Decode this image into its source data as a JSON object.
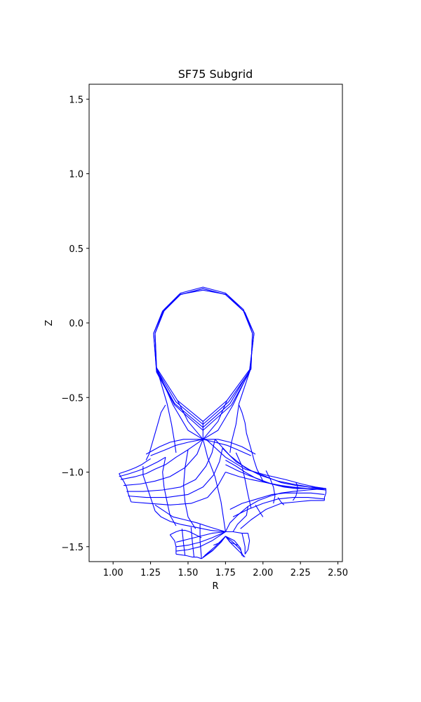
{
  "chart_data": {
    "type": "line",
    "title": "SF75 Subgrid",
    "xlabel": "R",
    "ylabel": "Z",
    "xlim": [
      0.84,
      2.53
    ],
    "ylim": [
      -1.6,
      1.6
    ],
    "xticks": [
      1.0,
      1.25,
      1.5,
      1.75,
      2.0,
      2.25,
      2.5
    ],
    "xtick_labels": [
      "1.00",
      "1.25",
      "1.50",
      "1.75",
      "2.00",
      "2.25",
      "2.50"
    ],
    "yticks": [
      1.5,
      1.0,
      0.5,
      0.0,
      -0.5,
      -1.0,
      -1.5
    ],
    "ytick_labels": [
      "1.5",
      "1.0",
      "0.5",
      "0.0",
      "−0.5",
      "−1.0",
      "−1.5"
    ],
    "grid": false,
    "line_color": "#0000ff",
    "series": [
      {
        "x": [
          1.28,
          1.34,
          1.45,
          1.6,
          1.75,
          1.87,
          1.93,
          1.92,
          1.76,
          1.6,
          1.43,
          1.29,
          1.28
        ],
        "y": [
          -0.07,
          0.09,
          0.2,
          0.24,
          0.2,
          0.09,
          -0.07,
          -0.3,
          -0.52,
          -0.66,
          -0.52,
          -0.3,
          -0.07
        ]
      },
      {
        "x": [
          1.28,
          1.34,
          1.45,
          1.6,
          1.75,
          1.87,
          1.93,
          1.92,
          1.77,
          1.6,
          1.42,
          1.29,
          1.28
        ],
        "y": [
          -0.07,
          0.08,
          0.19,
          0.23,
          0.19,
          0.08,
          -0.07,
          -0.31,
          -0.53,
          -0.68,
          -0.53,
          -0.31,
          -0.07
        ]
      },
      {
        "x": [
          1.27,
          1.33,
          1.45,
          1.6,
          1.75,
          1.87,
          1.94,
          1.91,
          1.78,
          1.6,
          1.41,
          1.29,
          1.27
        ],
        "y": [
          -0.07,
          0.08,
          0.19,
          0.23,
          0.19,
          0.08,
          -0.07,
          -0.32,
          -0.54,
          -0.7,
          -0.54,
          -0.32,
          -0.07
        ]
      },
      {
        "x": [
          1.27,
          1.33,
          1.44,
          1.6,
          1.76,
          1.88,
          1.94,
          1.91,
          1.79,
          1.6,
          1.41,
          1.29,
          1.27
        ],
        "y": [
          -0.07,
          0.07,
          0.19,
          0.22,
          0.19,
          0.07,
          -0.07,
          -0.33,
          -0.55,
          -0.72,
          -0.55,
          -0.33,
          -0.07
        ]
      },
      {
        "x": [
          1.29,
          1.36,
          1.39,
          1.41,
          1.42
        ],
        "y": [
          -0.3,
          -0.54,
          -0.68,
          -0.8,
          -0.87
        ]
      },
      {
        "x": [
          1.29,
          1.4,
          1.5,
          1.6
        ],
        "y": [
          -0.3,
          -0.55,
          -0.72,
          -0.78
        ]
      },
      {
        "x": [
          1.43,
          1.5,
          1.6
        ],
        "y": [
          -0.52,
          -0.66,
          -0.78
        ]
      },
      {
        "x": [
          1.92,
          1.84,
          1.82,
          1.79,
          1.78
        ],
        "y": [
          -0.3,
          -0.54,
          -0.68,
          -0.8,
          -0.87
        ]
      },
      {
        "x": [
          1.92,
          1.8,
          1.7,
          1.6
        ],
        "y": [
          -0.3,
          -0.55,
          -0.72,
          -0.78
        ]
      },
      {
        "x": [
          1.76,
          1.7,
          1.6
        ],
        "y": [
          -0.52,
          -0.66,
          -0.78
        ]
      },
      {
        "x": [
          1.6,
          1.6
        ],
        "y": [
          -0.66,
          -0.78
        ]
      },
      {
        "x": [
          1.35,
          1.32,
          1.3,
          1.28,
          1.26,
          1.24,
          1.22
        ],
        "y": [
          -0.55,
          -0.6,
          -0.67,
          -0.74,
          -0.81,
          -0.88,
          -0.92
        ]
      },
      {
        "x": [
          1.84,
          1.86,
          1.88,
          1.89,
          1.91,
          1.93,
          1.94
        ],
        "y": [
          -0.55,
          -0.6,
          -0.67,
          -0.74,
          -0.81,
          -0.88,
          -0.92
        ]
      },
      {
        "x": [
          1.22,
          1.31,
          1.38,
          1.47,
          1.6
        ],
        "y": [
          -0.88,
          -0.83,
          -0.8,
          -0.78,
          -0.78
        ]
      },
      {
        "x": [
          1.25,
          1.35,
          1.42,
          1.5,
          1.6
        ],
        "y": [
          -0.89,
          -0.85,
          -0.82,
          -0.8,
          -0.78
        ]
      },
      {
        "x": [
          1.95,
          1.86,
          1.78,
          1.7,
          1.6
        ],
        "y": [
          -0.88,
          -0.83,
          -0.8,
          -0.78,
          -0.78
        ]
      },
      {
        "x": [
          1.92,
          1.83,
          1.76,
          1.68,
          1.6
        ],
        "y": [
          -0.89,
          -0.85,
          -0.82,
          -0.8,
          -0.78
        ]
      },
      {
        "x": [
          1.04,
          1.1,
          1.15,
          1.19,
          1.22,
          1.25
        ],
        "y": [
          -1.01,
          -0.99,
          -0.97,
          -0.95,
          -0.93,
          -0.91
        ]
      },
      {
        "x": [
          1.04,
          1.11,
          1.17,
          1.22,
          1.26,
          1.3,
          1.35
        ],
        "y": [
          -1.03,
          -1.01,
          -0.99,
          -0.97,
          -0.95,
          -0.93,
          -0.9
        ]
      },
      {
        "x": [
          1.05,
          1.15,
          1.22,
          1.28,
          1.35,
          1.42,
          1.5,
          1.6
        ],
        "y": [
          -1.05,
          -1.03,
          -1.01,
          -0.98,
          -0.95,
          -0.9,
          -0.85,
          -0.78
        ]
      },
      {
        "x": [
          1.07,
          1.18,
          1.28,
          1.38,
          1.48,
          1.56,
          1.6
        ],
        "y": [
          -1.09,
          -1.08,
          -1.06,
          -1.03,
          -0.97,
          -0.88,
          -0.78
        ]
      },
      {
        "x": [
          1.09,
          1.2,
          1.33,
          1.45,
          1.55,
          1.62,
          1.66,
          1.68
        ],
        "y": [
          -1.13,
          -1.13,
          -1.12,
          -1.1,
          -1.05,
          -0.96,
          -0.87,
          -0.78
        ]
      },
      {
        "x": [
          1.1,
          1.22,
          1.36,
          1.5,
          1.6,
          1.67,
          1.71,
          1.73
        ],
        "y": [
          -1.16,
          -1.17,
          -1.17,
          -1.15,
          -1.1,
          -1.02,
          -0.93,
          -0.84
        ]
      },
      {
        "x": [
          1.12,
          1.24,
          1.38,
          1.52,
          1.63,
          1.7,
          1.75
        ],
        "y": [
          -1.2,
          -1.21,
          -1.22,
          -1.21,
          -1.17,
          -1.09,
          -1.0
        ]
      },
      {
        "x": [
          1.04,
          1.05,
          1.07,
          1.09,
          1.1,
          1.12
        ],
        "y": [
          -1.01,
          -1.03,
          -1.06,
          -1.1,
          -1.14,
          -1.2
        ]
      },
      {
        "x": [
          1.2,
          1.2,
          1.22,
          1.24,
          1.26,
          1.28
        ],
        "y": [
          -0.96,
          -1.02,
          -1.08,
          -1.14,
          -1.2,
          -1.26
        ]
      },
      {
        "x": [
          1.35,
          1.33,
          1.34,
          1.36,
          1.38,
          1.42
        ],
        "y": [
          -0.9,
          -1.0,
          -1.1,
          -1.2,
          -1.29,
          -1.36
        ]
      },
      {
        "x": [
          1.5,
          1.48,
          1.47,
          1.48,
          1.5,
          1.55
        ],
        "y": [
          -0.85,
          -0.97,
          -1.09,
          -1.2,
          -1.3,
          -1.38
        ]
      },
      {
        "x": [
          1.6,
          1.63,
          1.68,
          1.72,
          1.75
        ],
        "y": [
          -0.78,
          -0.9,
          -1.03,
          -1.2,
          -1.4
        ]
      },
      {
        "x": [
          1.28,
          1.32,
          1.38,
          1.45,
          1.55,
          1.65,
          1.75
        ],
        "y": [
          -1.26,
          -1.3,
          -1.33,
          -1.35,
          -1.37,
          -1.39,
          -1.4
        ]
      },
      {
        "x": [
          1.28,
          1.34,
          1.4,
          1.48,
          1.56,
          1.65,
          1.75
        ],
        "y": [
          -1.22,
          -1.26,
          -1.3,
          -1.32,
          -1.34,
          -1.37,
          -1.4
        ]
      },
      {
        "x": [
          1.38,
          1.41,
          1.42,
          1.42,
          1.42
        ],
        "y": [
          -1.42,
          -1.46,
          -1.5,
          -1.53,
          -1.55
        ]
      },
      {
        "x": [
          1.38,
          1.42,
          1.45,
          1.48,
          1.51,
          1.55,
          1.59
        ],
        "y": [
          -1.42,
          -1.4,
          -1.39,
          -1.39,
          -1.4,
          -1.42,
          -1.44
        ]
      },
      {
        "x": [
          1.42,
          1.5,
          1.58,
          1.66,
          1.75
        ],
        "y": [
          -1.47,
          -1.45,
          -1.43,
          -1.41,
          -1.4
        ]
      },
      {
        "x": [
          1.42,
          1.5,
          1.58,
          1.66,
          1.75
        ],
        "y": [
          -1.5,
          -1.49,
          -1.47,
          -1.44,
          -1.4
        ]
      },
      {
        "x": [
          1.42,
          1.5,
          1.58,
          1.66,
          1.75
        ],
        "y": [
          -1.53,
          -1.52,
          -1.5,
          -1.46,
          -1.4
        ]
      },
      {
        "x": [
          1.42,
          1.49,
          1.53,
          1.56,
          1.59
        ],
        "y": [
          -1.55,
          -1.56,
          -1.57,
          -1.57,
          -1.58
        ]
      },
      {
        "x": [
          1.46,
          1.47,
          1.48
        ],
        "y": [
          -1.38,
          -1.48,
          -1.56
        ]
      },
      {
        "x": [
          1.52,
          1.53,
          1.54
        ],
        "y": [
          -1.37,
          -1.48,
          -1.57
        ]
      },
      {
        "x": [
          1.58,
          1.58,
          1.59
        ],
        "y": [
          -1.35,
          -1.46,
          -1.58
        ]
      },
      {
        "x": [
          1.59,
          1.66,
          1.71,
          1.75
        ],
        "y": [
          -1.58,
          -1.53,
          -1.48,
          -1.43
        ]
      },
      {
        "x": [
          1.6,
          1.67,
          1.72,
          1.75
        ],
        "y": [
          -1.57,
          -1.52,
          -1.47,
          -1.43
        ]
      },
      {
        "x": [
          1.61,
          1.68,
          1.72,
          1.75
        ],
        "y": [
          -1.56,
          -1.5,
          -1.46,
          -1.43
        ]
      },
      {
        "x": [
          1.75,
          1.79,
          1.84,
          1.88
        ],
        "y": [
          -1.43,
          -1.48,
          -1.53,
          -1.57
        ]
      },
      {
        "x": [
          1.75,
          1.8,
          1.85,
          1.87
        ],
        "y": [
          -1.43,
          -1.47,
          -1.52,
          -1.57
        ]
      },
      {
        "x": [
          1.75,
          1.81,
          1.85,
          1.86
        ],
        "y": [
          -1.43,
          -1.46,
          -1.51,
          -1.56
        ]
      },
      {
        "x": [
          1.67,
          1.72,
          1.75
        ],
        "y": [
          -1.49,
          -1.47,
          -1.43
        ]
      },
      {
        "x": [
          1.83,
          1.78,
          1.75
        ],
        "y": [
          -1.49,
          -1.47,
          -1.43
        ]
      },
      {
        "x": [
          1.75,
          1.8,
          1.86,
          1.9
        ],
        "y": [
          -1.4,
          -1.4,
          -1.41,
          -1.41
        ]
      },
      {
        "x": [
          1.86,
          1.87,
          1.88,
          1.88
        ],
        "y": [
          -1.41,
          -1.45,
          -1.5,
          -1.55
        ]
      },
      {
        "x": [
          1.9,
          1.91,
          1.9,
          1.88
        ],
        "y": [
          -1.41,
          -1.46,
          -1.52,
          -1.55
        ]
      },
      {
        "x": [
          1.75,
          1.78,
          1.83,
          1.9,
          1.97,
          2.05,
          2.12,
          2.2,
          2.3,
          2.42
        ],
        "y": [
          -1.4,
          -1.34,
          -1.29,
          -1.23,
          -1.19,
          -1.16,
          -1.14,
          -1.13,
          -1.12,
          -1.11
        ]
      },
      {
        "x": [
          1.75,
          1.84,
          1.92,
          2.02,
          2.12,
          2.2,
          2.3,
          2.42
        ],
        "y": [
          -1.0,
          -1.03,
          -1.05,
          -1.07,
          -1.09,
          -1.1,
          -1.11,
          -1.12
        ]
      },
      {
        "x": [
          1.68,
          1.78,
          1.88,
          1.98,
          2.1,
          2.2,
          2.31,
          2.42
        ],
        "y": [
          -0.78,
          -0.89,
          -0.97,
          -1.02,
          -1.06,
          -1.08,
          -1.1,
          -1.11
        ]
      },
      {
        "x": [
          1.73,
          1.82,
          1.92,
          2.02,
          2.12,
          2.22,
          2.31,
          2.42
        ],
        "y": [
          -0.84,
          -0.93,
          -0.99,
          -1.03,
          -1.07,
          -1.09,
          -1.1,
          -1.11
        ]
      },
      {
        "x": [
          1.62,
          1.75,
          1.88,
          2.02,
          2.15,
          2.26,
          2.35,
          2.42
        ],
        "y": [
          -0.78,
          -0.9,
          -0.98,
          -1.02,
          -1.05,
          -1.08,
          -1.1,
          -1.11
        ]
      },
      {
        "x": [
          1.75,
          1.82,
          1.88,
          1.95,
          2.02,
          2.1,
          2.18,
          2.27,
          2.35,
          2.42
        ],
        "y": [
          -0.92,
          -0.96,
          -1.0,
          -1.04,
          -1.07,
          -1.09,
          -1.1,
          -1.11,
          -1.11,
          -1.11
        ]
      },
      {
        "x": [
          1.75,
          1.83,
          1.9,
          1.98,
          2.06,
          2.14,
          2.22,
          2.3,
          2.36,
          2.42
        ],
        "y": [
          -0.95,
          -0.99,
          -1.02,
          -1.05,
          -1.08,
          -1.1,
          -1.11,
          -1.11,
          -1.11,
          -1.12
        ]
      },
      {
        "x": [
          1.78,
          1.86,
          1.96,
          2.06,
          2.15,
          2.24,
          2.32,
          2.41
        ],
        "y": [
          -1.25,
          -1.21,
          -1.18,
          -1.15,
          -1.14,
          -1.14,
          -1.14,
          -1.15
        ]
      },
      {
        "x": [
          1.8,
          1.9,
          2.0,
          2.1,
          2.2,
          2.3,
          2.41
        ],
        "y": [
          -1.3,
          -1.25,
          -1.21,
          -1.18,
          -1.17,
          -1.17,
          -1.18
        ]
      },
      {
        "x": [
          1.85,
          1.92,
          2.02,
          2.12,
          2.22,
          2.32,
          2.41
        ],
        "y": [
          -1.38,
          -1.32,
          -1.25,
          -1.21,
          -1.2,
          -1.19,
          -1.19
        ]
      },
      {
        "x": [
          2.42,
          2.42,
          2.42,
          2.41,
          2.41
        ],
        "y": [
          -1.11,
          -1.12,
          -1.14,
          -1.17,
          -1.19
        ]
      },
      {
        "x": [
          2.22,
          2.23,
          2.23,
          2.22,
          2.2
        ],
        "y": [
          -1.07,
          -1.09,
          -1.12,
          -1.16,
          -1.19
        ]
      },
      {
        "x": [
          2.02,
          2.05,
          2.07,
          2.08,
          2.07
        ],
        "y": [
          -0.99,
          -1.05,
          -1.1,
          -1.16,
          -1.21
        ]
      },
      {
        "x": [
          1.82,
          1.86,
          1.88,
          1.9,
          1.92
        ],
        "y": [
          -0.87,
          -0.96,
          -1.05,
          -1.15,
          -1.24
        ]
      },
      {
        "x": [
          1.94,
          1.96,
          1.98,
          2.0
        ],
        "y": [
          -0.92,
          -0.98,
          -1.02,
          -1.06
        ]
      },
      {
        "x": [
          1.8,
          1.83,
          1.86,
          1.89,
          1.9
        ],
        "y": [
          -1.4,
          -1.35,
          -1.32,
          -1.29,
          -1.23
        ]
      },
      {
        "x": [
          1.95,
          1.98,
          2.0
        ],
        "y": [
          -1.22,
          -1.27,
          -1.3
        ]
      },
      {
        "x": [
          2.1,
          2.12,
          2.14
        ],
        "y": [
          -1.17,
          -1.2,
          -1.22
        ]
      }
    ]
  }
}
